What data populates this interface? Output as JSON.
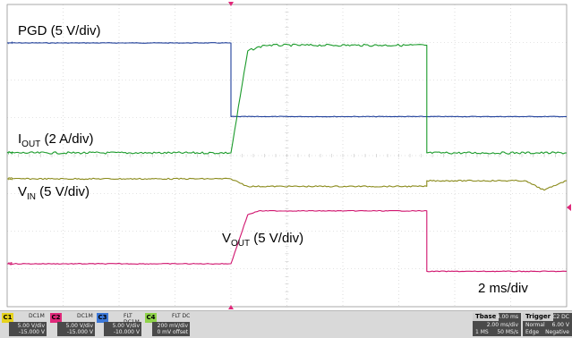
{
  "chart_data": {
    "type": "line",
    "time_scale_label": "2 ms/div",
    "x_range_ms": [
      -8,
      12
    ],
    "x_divisions": 10,
    "y_divisions": 8,
    "trigger_time_ms": 0,
    "grid": true,
    "series": [
      {
        "name": "PGD (5 V/div)",
        "channel": "1",
        "color": "#1f3f9a",
        "x": [
          -8,
          0,
          0,
          12
        ],
        "y": [
          0,
          0,
          -1.95,
          -1.95
        ]
      },
      {
        "name": "IOUT (2 A/div)",
        "channel": "2",
        "color": "#1a9a2a",
        "x": [
          -8,
          0,
          0.6,
          1.2,
          4.5,
          7,
          7,
          12
        ],
        "y": [
          0,
          0,
          2.7,
          2.85,
          2.85,
          2.85,
          0,
          0
        ]
      },
      {
        "name": "VIN (5 V/div)",
        "channel": "3",
        "color": "#8a8a1a",
        "x": [
          -8,
          0,
          0.6,
          7,
          7,
          10.5,
          11.2,
          11.8,
          12
        ],
        "y": [
          0,
          0,
          -0.2,
          -0.2,
          -0.05,
          -0.05,
          -0.3,
          -0.1,
          -0.05
        ]
      },
      {
        "name": "VOUT (5 V/div)",
        "channel": "4",
        "color": "#d0146e",
        "x": [
          -8,
          0,
          0.6,
          1.0,
          7,
          7,
          12
        ],
        "y": [
          0,
          0,
          1.3,
          1.4,
          1.4,
          -0.2,
          -0.2
        ]
      }
    ]
  },
  "labels": {
    "pgd": "PGD (5 V/div)",
    "iout_main": "I",
    "iout_sub": "OUT",
    "iout_rest": " (2 A/div)",
    "vin_main": "V",
    "vin_sub": "IN",
    "vin_rest": " (5 V/div)",
    "vout_main": "V",
    "vout_sub": "OUT",
    "vout_rest": " (5 V/div)",
    "timebase": "2 ms/div"
  },
  "status_bar": {
    "channels": [
      {
        "tag": "C1",
        "color": "#e6d21c",
        "cfg": "DC1M",
        "l1": "5.00 V/div",
        "l2": "-15.000 V"
      },
      {
        "tag": "C2",
        "color": "#e0287a",
        "cfg": "DC1M",
        "l1": "5.00 V/div",
        "l2": "-15.000 V"
      },
      {
        "tag": "C3",
        "color": "#3c78d8",
        "cfg": "FLT DC1M",
        "l1": "5.00 V/div",
        "l2": "-10.000 V"
      },
      {
        "tag": "C4",
        "color": "#8fd34a",
        "cfg": "FLT DC",
        "l1": "200 mV/div",
        "l2": "0 mV offset"
      }
    ],
    "tbase": {
      "title": "Tbase",
      "offset": "-4.00 ms",
      "rate": "2.00 ms/div",
      "samples": "1 MS",
      "srate": "50 MS/s"
    },
    "trigger": {
      "title": "Trigger",
      "src": "C2 DC",
      "mode": "Normal",
      "level": "6.00 V",
      "type": "Edge",
      "slope": "Negative"
    }
  }
}
